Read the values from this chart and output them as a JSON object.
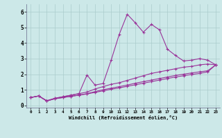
{
  "xlabel": "Windchill (Refroidissement éolien,°C)",
  "bg_color": "#cce8e8",
  "line_color": "#993399",
  "grid_color": "#aacccc",
  "xlim": [
    -0.5,
    23.5
  ],
  "ylim": [
    -0.15,
    6.5
  ],
  "xticks": [
    0,
    1,
    2,
    3,
    4,
    5,
    6,
    7,
    8,
    9,
    10,
    11,
    12,
    13,
    14,
    15,
    16,
    17,
    18,
    19,
    20,
    21,
    22,
    23
  ],
  "yticks": [
    0,
    1,
    2,
    3,
    4,
    5,
    6
  ],
  "spike_x": [
    0,
    1,
    2,
    3,
    4,
    5,
    6,
    7,
    8,
    9,
    10,
    11,
    12,
    13,
    14,
    15,
    16,
    17,
    18,
    19,
    20,
    21,
    22,
    23
  ],
  "spike_y": [
    0.5,
    0.6,
    0.3,
    0.45,
    0.55,
    0.65,
    0.75,
    1.95,
    1.3,
    1.4,
    2.9,
    4.55,
    5.85,
    5.3,
    4.7,
    5.2,
    4.85,
    3.6,
    3.2,
    2.85,
    2.9,
    3.0,
    2.9,
    2.6
  ],
  "line_upper_x": [
    0,
    1,
    2,
    3,
    4,
    5,
    6,
    7,
    8,
    9,
    10,
    11,
    12,
    13,
    14,
    15,
    16,
    17,
    18,
    19,
    20,
    21,
    22,
    23
  ],
  "line_upper_y": [
    0.5,
    0.6,
    0.28,
    0.45,
    0.55,
    0.65,
    0.75,
    0.85,
    1.05,
    1.2,
    1.35,
    1.45,
    1.6,
    1.75,
    1.9,
    2.05,
    2.15,
    2.25,
    2.35,
    2.45,
    2.5,
    2.6,
    2.65,
    2.6
  ],
  "line_mid_x": [
    0,
    1,
    2,
    3,
    4,
    5,
    6,
    7,
    8,
    9,
    10,
    11,
    12,
    13,
    14,
    15,
    16,
    17,
    18,
    19,
    20,
    21,
    22,
    23
  ],
  "line_mid_y": [
    0.5,
    0.6,
    0.28,
    0.42,
    0.5,
    0.58,
    0.65,
    0.75,
    0.88,
    1.0,
    1.1,
    1.2,
    1.3,
    1.42,
    1.52,
    1.62,
    1.72,
    1.82,
    1.92,
    2.0,
    2.08,
    2.15,
    2.22,
    2.6
  ],
  "line_low_x": [
    0,
    1,
    2,
    3,
    4,
    5,
    6,
    7,
    8,
    9,
    10,
    11,
    12,
    13,
    14,
    15,
    16,
    17,
    18,
    19,
    20,
    21,
    22,
    23
  ],
  "line_low_y": [
    0.5,
    0.6,
    0.28,
    0.42,
    0.5,
    0.58,
    0.65,
    0.73,
    0.83,
    0.93,
    1.03,
    1.12,
    1.22,
    1.32,
    1.42,
    1.52,
    1.62,
    1.72,
    1.82,
    1.9,
    1.98,
    2.05,
    2.15,
    2.6
  ]
}
